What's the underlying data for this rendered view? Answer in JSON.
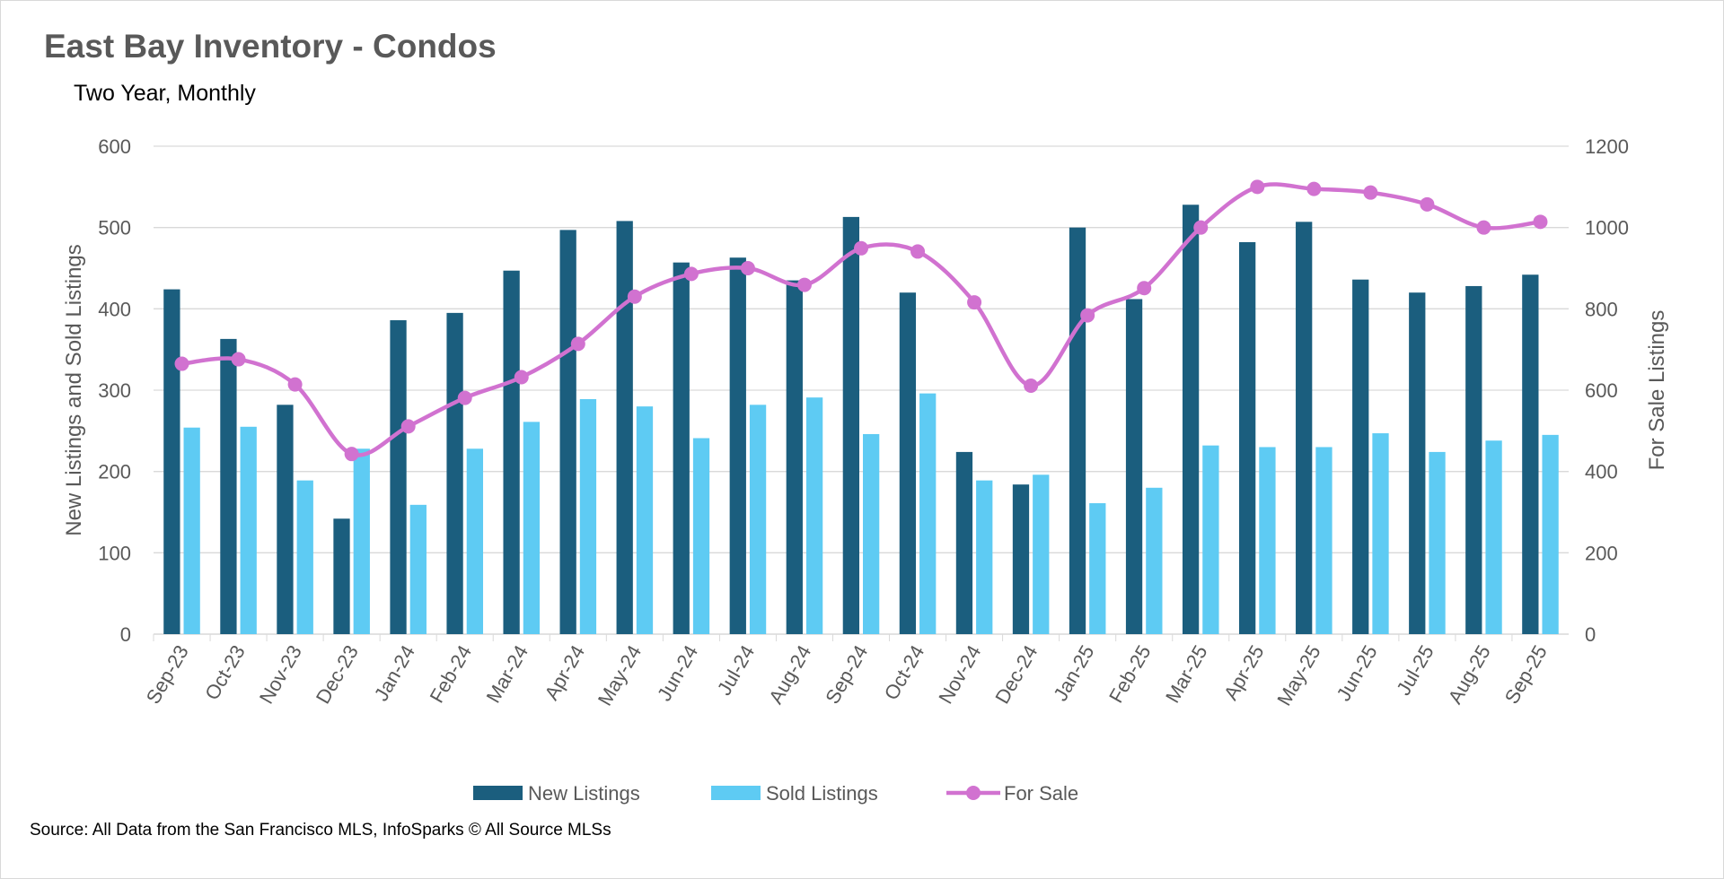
{
  "chart_data": {
    "type": "bar+line",
    "title": "East Bay Inventory - Condos",
    "subtitle": "Two Year, Monthly",
    "ylabel": "New Listings and Sold Listings",
    "y2label": "For Sale Listings",
    "ylim": [
      0,
      600
    ],
    "y2lim": [
      0,
      1200
    ],
    "yticks": [
      0,
      100,
      200,
      300,
      400,
      500,
      600
    ],
    "y2ticks": [
      0,
      200,
      400,
      600,
      800,
      1000,
      1200
    ],
    "grid": true,
    "legend_position": "bottom",
    "categories": [
      "Sep-23",
      "Oct-23",
      "Nov-23",
      "Dec-23",
      "Jan-24",
      "Feb-24",
      "Mar-24",
      "Apr-24",
      "May-24",
      "Jun-24",
      "Jul-24",
      "Aug-24",
      "Sep-24",
      "Oct-24",
      "Nov-24",
      "Dec-24",
      "Jan-25",
      "Feb-25",
      "Mar-25",
      "Apr-25",
      "May-25",
      "Jun-25",
      "Jul-25",
      "Aug-25",
      "Sep-25"
    ],
    "series": [
      {
        "name": "New Listings",
        "type": "bar",
        "axis": "left",
        "color": "#1b5e7e",
        "values": [
          424,
          363,
          282,
          142,
          386,
          395,
          447,
          497,
          508,
          457,
          463,
          435,
          513,
          420,
          224,
          184,
          500,
          412,
          528,
          482,
          507,
          436,
          420,
          428,
          442
        ]
      },
      {
        "name": "Sold Listings",
        "type": "bar",
        "axis": "left",
        "color": "#5ecbf3",
        "values": [
          254,
          255,
          189,
          228,
          159,
          228,
          261,
          289,
          280,
          241,
          282,
          291,
          246,
          296,
          189,
          196,
          161,
          180,
          232,
          230,
          230,
          247,
          224,
          238,
          245
        ]
      },
      {
        "name": "For Sale",
        "type": "line",
        "axis": "right",
        "color": "#d172d0",
        "values": [
          665,
          676,
          614,
          443,
          511,
          581,
          632,
          714,
          830,
          886,
          900,
          859,
          949,
          941,
          816,
          611,
          784,
          851,
          1000,
          1100,
          1095,
          1086,
          1057,
          1000,
          1014
        ]
      }
    ],
    "source": "Source: All Data from the San Francisco MLS, InfoSparks © All Source MLSs"
  }
}
